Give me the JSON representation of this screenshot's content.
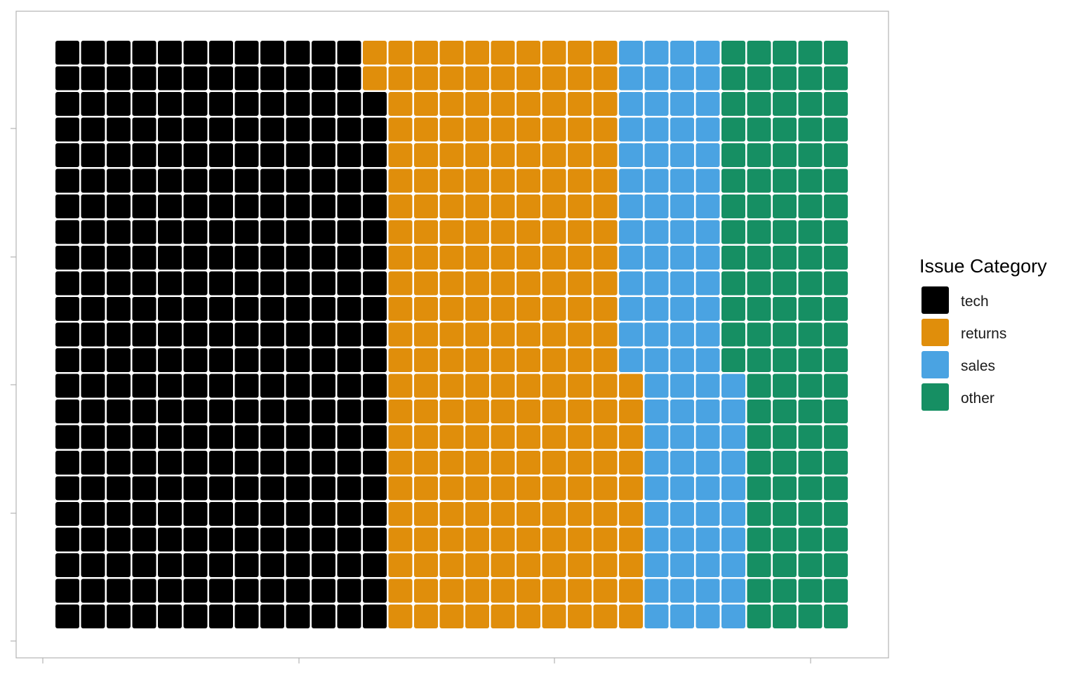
{
  "chart_data": {
    "type": "waffle",
    "rows": 23,
    "fill_order": "column-wise, bottom to top, left to right",
    "series": [
      {
        "name": "tech",
        "value": 297,
        "color": "#000000"
      },
      {
        "name": "returns",
        "value": 219,
        "color": "#E08E0B"
      },
      {
        "name": "sales",
        "value": 92,
        "color": "#4AA3E2"
      },
      {
        "name": "other",
        "value": 105,
        "color": "#168F63"
      }
    ],
    "title": "",
    "xlabel": "",
    "ylabel": "",
    "grid": false,
    "legend": {
      "title": "Issue Category",
      "position": "right"
    }
  }
}
